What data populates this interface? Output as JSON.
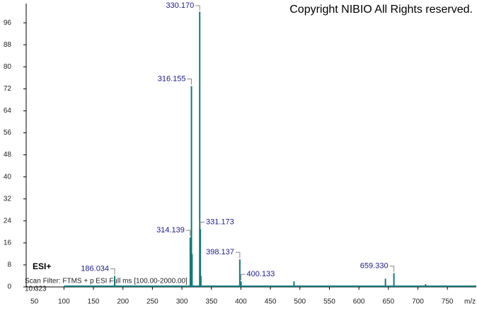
{
  "chart_data": {
    "type": "stick",
    "annotations": {
      "copyright": "Copyright NIBIO All Rights reserved.",
      "mode": "ESI+",
      "scan_filter": "Scan Filter: FTMS + p ESI Full ms [100.00-2000.00]",
      "time": "10.323"
    },
    "x_label": "m/z",
    "series": [
      {
        "color": "#127a78",
        "x": [
          186.034,
          314.139,
          316.155,
          317.16,
          330.17,
          331.173,
          332.17,
          398.137,
          400.133,
          490,
          645,
          659.33,
          713
        ],
        "values": [
          4,
          18,
          73,
          12,
          100,
          21,
          4,
          10,
          2,
          2,
          3,
          5,
          1
        ],
        "x_labels": [
          "186.034",
          "314.139",
          "316.155",
          null,
          "330.170",
          "331.173",
          null,
          "398.137",
          "400.133",
          null,
          null,
          "659.330",
          null
        ]
      }
    ],
    "label_color": "#1c1c8c",
    "xlim": [
      36,
      799
    ],
    "xticks": [
      50,
      100,
      150,
      200,
      250,
      300,
      350,
      400,
      450,
      500,
      550,
      600,
      650,
      700,
      750
    ],
    "ylim": [
      0,
      103
    ],
    "yticks": [
      0,
      8,
      16,
      24,
      32,
      40,
      48,
      56,
      64,
      72,
      80,
      88,
      96
    ]
  }
}
